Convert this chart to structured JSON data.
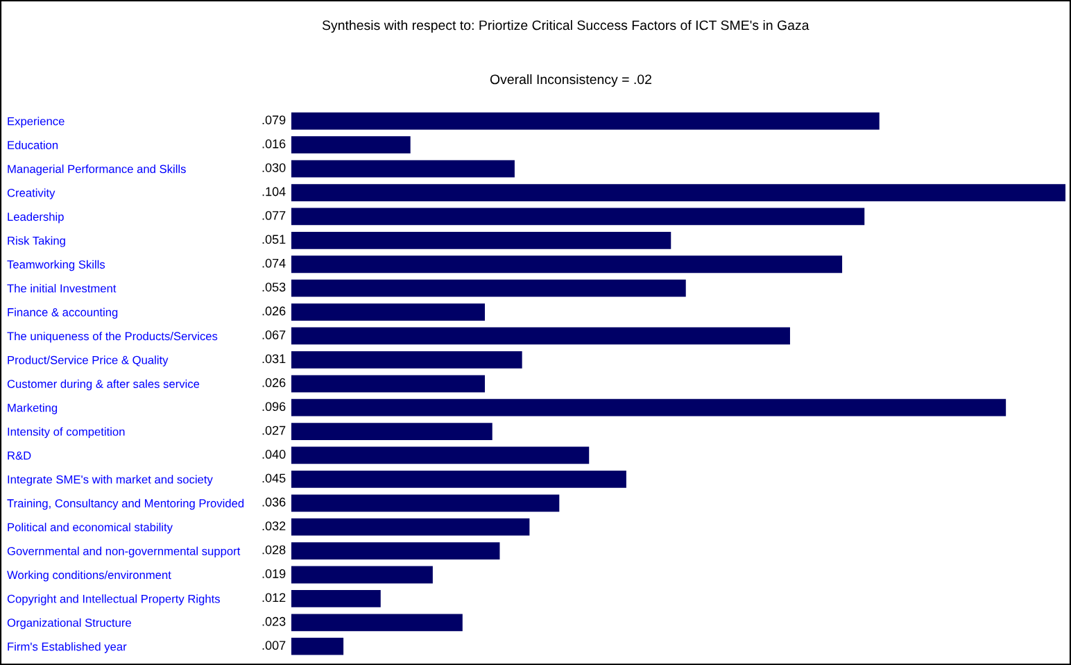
{
  "chart_data": {
    "type": "bar",
    "orientation": "horizontal",
    "title": "Synthesis with respect to: Priortize Critical Success Factors of ICT SME's in Gaza",
    "subtitle": "Overall Inconsistency = .02",
    "categories": [
      "Experience",
      "Education",
      "Managerial Performance and Skills",
      "Creativity",
      "Leadership",
      "Risk Taking",
      "Teamworking Skills",
      "The initial Investment",
      "Finance & accounting",
      "The uniqueness of the Products/Services",
      "Product/Service Price & Quality",
      "Customer during & after sales service",
      "Marketing",
      "Intensity of competition",
      "R&D",
      "Integrate SME's with market and society",
      "Training, Consultancy and Mentoring Provided",
      "Political and economical stability",
      "Governmental and non-governmental support",
      "Working conditions/environment",
      "Copyright and Intellectual Property Rights",
      "Organizational Structure",
      "Firm's Established year"
    ],
    "values": [
      0.079,
      0.016,
      0.03,
      0.104,
      0.077,
      0.051,
      0.074,
      0.053,
      0.026,
      0.067,
      0.031,
      0.026,
      0.096,
      0.027,
      0.04,
      0.045,
      0.036,
      0.032,
      0.028,
      0.019,
      0.012,
      0.023,
      0.007
    ],
    "value_labels": [
      ".079",
      ".016",
      ".030",
      ".104",
      ".077",
      ".051",
      ".074",
      ".053",
      ".026",
      ".067",
      ".031",
      ".026",
      ".096",
      ".027",
      ".040",
      ".045",
      ".036",
      ".032",
      ".028",
      ".019",
      ".012",
      ".023",
      ".007"
    ],
    "color": "#000066",
    "grid": false,
    "legend": false
  }
}
